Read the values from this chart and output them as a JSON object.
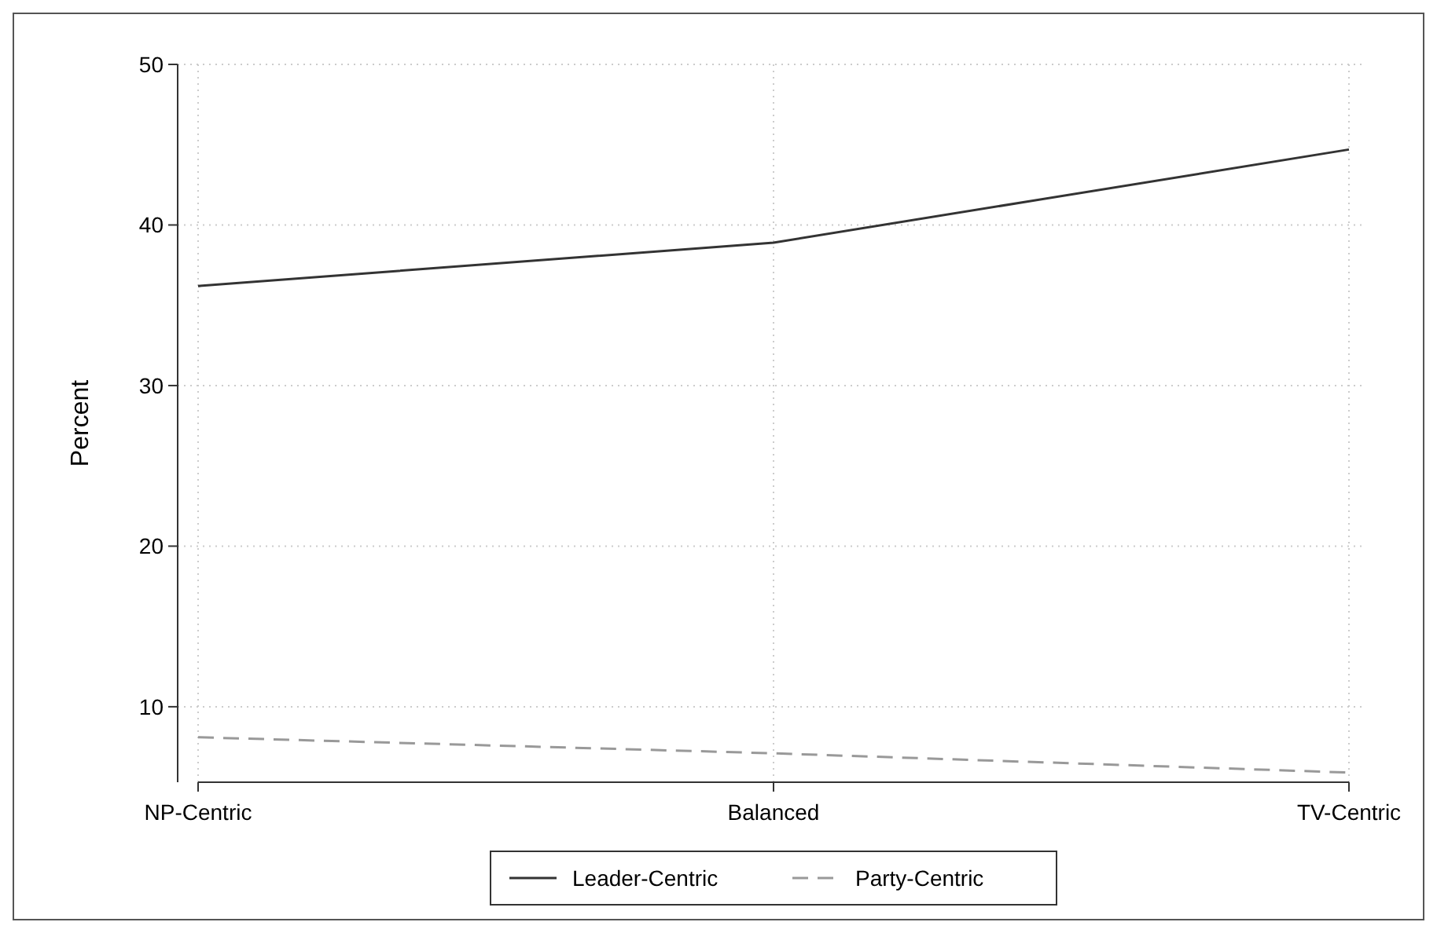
{
  "chart_data": {
    "type": "line",
    "ylabel": "Percent",
    "categories": [
      "NP-Centric",
      "Balanced",
      "TV-Centric"
    ],
    "series": [
      {
        "name": "Leader-Centric",
        "color": "#333333",
        "values": [
          36.2,
          38.9,
          44.7
        ],
        "line_style": "solid"
      },
      {
        "name": "Party-Centric",
        "color": "#999999",
        "values": [
          8.1,
          7.1,
          5.9
        ],
        "line_style": "dashed"
      }
    ],
    "ylim": [
      5.3,
      50
    ],
    "yticks": [
      10,
      20,
      30,
      40,
      50
    ],
    "grid": true,
    "legend": "bottom",
    "marker": "none"
  }
}
